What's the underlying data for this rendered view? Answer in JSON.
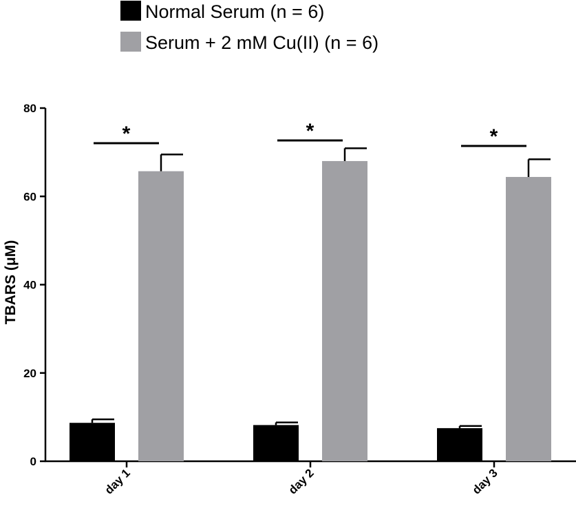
{
  "chart_data": {
    "type": "bar",
    "categories": [
      "day 1",
      "day 2",
      "day 3"
    ],
    "series": [
      {
        "name": "Normal Serum (n = 6)",
        "values": [
          8.7,
          8.2,
          7.5
        ],
        "errors": [
          0.8,
          0.6,
          0.5
        ],
        "color": "#000000"
      },
      {
        "name": "Serum + 2 mM Cu(II) (n = 6)",
        "values": [
          65.7,
          68.0,
          64.4
        ],
        "errors": [
          3.8,
          2.9,
          4.0
        ],
        "color": "#a0a0a4"
      }
    ],
    "ylabel": "TBARS (μM)",
    "xlabel": "",
    "ylim": [
      0,
      80
    ],
    "yticks": [
      0,
      20,
      40,
      60,
      80
    ],
    "significance": [
      {
        "category": "day 1",
        "label": "*"
      },
      {
        "category": "day 2",
        "label": "*"
      },
      {
        "category": "day 3",
        "label": "*"
      }
    ],
    "legend_position": "top-left",
    "grid": false
  }
}
